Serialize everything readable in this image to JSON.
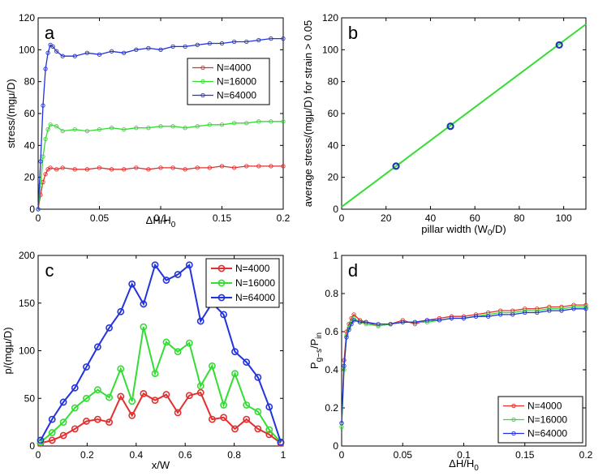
{
  "chart_data": [
    {
      "id": "a",
      "type": "line",
      "panel_label": "a",
      "xlabel": "ΔH/H",
      "xlabel_sub": "0",
      "ylabel": "stress/(mgμ/D)",
      "xlim": [
        0,
        0.2
      ],
      "ylim": [
        0,
        120
      ],
      "xticks": [
        0,
        0.05,
        0.1,
        0.15,
        0.2
      ],
      "xtick_labels": [
        "0",
        "0.05",
        "0.1",
        "0.15",
        "0.2"
      ],
      "yticks": [
        0,
        20,
        40,
        60,
        80,
        100,
        120
      ],
      "ytick_labels": [
        "0",
        "20",
        "40",
        "60",
        "80",
        "100",
        "120"
      ],
      "legend_position": "upper-right",
      "series": [
        {
          "name": "N=4000",
          "color": "#e0302f",
          "x": [
            0,
            0.002,
            0.004,
            0.006,
            0.008,
            0.01,
            0.015,
            0.02,
            0.03,
            0.04,
            0.05,
            0.06,
            0.07,
            0.08,
            0.09,
            0.1,
            0.11,
            0.12,
            0.13,
            0.14,
            0.15,
            0.16,
            0.17,
            0.18,
            0.19,
            0.2
          ],
          "y": [
            0,
            9,
            17,
            22,
            25,
            26,
            25,
            26,
            25,
            25,
            26,
            25,
            25,
            26,
            25,
            26,
            26,
            25,
            26,
            26,
            27,
            26,
            27,
            27,
            27,
            27
          ]
        },
        {
          "name": "N=16000",
          "color": "#33dd33",
          "x": [
            0,
            0.002,
            0.004,
            0.006,
            0.008,
            0.01,
            0.015,
            0.02,
            0.03,
            0.04,
            0.05,
            0.06,
            0.07,
            0.08,
            0.09,
            0.1,
            0.11,
            0.12,
            0.13,
            0.14,
            0.15,
            0.16,
            0.17,
            0.18,
            0.19,
            0.2
          ],
          "y": [
            0,
            15,
            33,
            44,
            50,
            53,
            52,
            49,
            50,
            49,
            50,
            51,
            50,
            51,
            51,
            52,
            52,
            51,
            52,
            53,
            53,
            54,
            54,
            55,
            55,
            55
          ]
        },
        {
          "name": "N=64000",
          "color": "#2233dd",
          "x": [
            0,
            0.002,
            0.004,
            0.006,
            0.008,
            0.01,
            0.012,
            0.015,
            0.02,
            0.03,
            0.04,
            0.05,
            0.06,
            0.07,
            0.08,
            0.09,
            0.1,
            0.11,
            0.12,
            0.13,
            0.14,
            0.15,
            0.16,
            0.17,
            0.18,
            0.19,
            0.2
          ],
          "y": [
            0,
            30,
            65,
            88,
            98,
            103,
            102,
            99,
            96,
            96,
            98,
            97,
            99,
            98,
            100,
            101,
            100,
            102,
            102,
            103,
            104,
            104,
            105,
            105,
            106,
            107,
            107
          ]
        }
      ]
    },
    {
      "id": "b",
      "type": "line",
      "panel_label": "b",
      "xlabel": "pillar width (W",
      "xlabel_sub": "0",
      "xlabel_tail": "/D)",
      "ylabel": "average stress/(mgμ/D) for strain > 0.05",
      "xlim": [
        0,
        110
      ],
      "ylim": [
        0,
        120
      ],
      "xticks": [
        0,
        20,
        40,
        60,
        80,
        100
      ],
      "xtick_labels": [
        "0",
        "20",
        "40",
        "60",
        "80",
        "100"
      ],
      "yticks": [
        0,
        20,
        40,
        60,
        80,
        100,
        120
      ],
      "ytick_labels": [
        "0",
        "20",
        "40",
        "60",
        "80",
        "100",
        "120"
      ],
      "series": [
        {
          "name": "fit",
          "color": "#33dd33",
          "x": [
            0,
            110
          ],
          "y": [
            1.5,
            116
          ]
        },
        {
          "name": "data",
          "color": "#1a3aa8",
          "x": [
            24.5,
            49,
            98
          ],
          "y": [
            27,
            52,
            103
          ]
        }
      ]
    },
    {
      "id": "c",
      "type": "line",
      "panel_label": "c",
      "xlabel": "x/W",
      "ylabel": "p/(mgμ/D)",
      "xlim": [
        0,
        1
      ],
      "ylim": [
        0,
        200
      ],
      "xticks": [
        0,
        0.2,
        0.4,
        0.6,
        0.8,
        1
      ],
      "xtick_labels": [
        "0",
        "0.2",
        "0.4",
        "0.6",
        "0.8",
        "1"
      ],
      "yticks": [
        0,
        50,
        100,
        150,
        200
      ],
      "ytick_labels": [
        "0",
        "50",
        "100",
        "150",
        "200"
      ],
      "legend_position": "upper-right",
      "series": [
        {
          "name": "N=4000",
          "color": "#e0302f",
          "x": [
            0.01,
            0.057,
            0.103,
            0.15,
            0.197,
            0.243,
            0.29,
            0.337,
            0.383,
            0.43,
            0.477,
            0.523,
            0.57,
            0.617,
            0.663,
            0.71,
            0.757,
            0.803,
            0.85,
            0.897,
            0.943,
            0.99
          ],
          "y": [
            3,
            6,
            11,
            18,
            26,
            28,
            25,
            52,
            32,
            55,
            48,
            54,
            35,
            53,
            56,
            28,
            30,
            18,
            28,
            18,
            12,
            3
          ]
        },
        {
          "name": "N=16000",
          "color": "#33dd33",
          "x": [
            0.01,
            0.057,
            0.103,
            0.15,
            0.197,
            0.243,
            0.29,
            0.337,
            0.383,
            0.43,
            0.477,
            0.523,
            0.57,
            0.617,
            0.663,
            0.71,
            0.757,
            0.803,
            0.85,
            0.897,
            0.943,
            0.99
          ],
          "y": [
            4,
            14,
            25,
            40,
            50,
            59,
            51,
            81,
            47,
            125,
            76,
            109,
            99,
            108,
            63,
            84,
            43,
            76,
            43,
            36,
            17,
            4
          ]
        },
        {
          "name": "N=64000",
          "color": "#2233dd",
          "x": [
            0.01,
            0.057,
            0.103,
            0.15,
            0.197,
            0.243,
            0.29,
            0.337,
            0.383,
            0.43,
            0.477,
            0.523,
            0.57,
            0.617,
            0.663,
            0.71,
            0.757,
            0.803,
            0.85,
            0.897,
            0.943,
            0.99
          ],
          "y": [
            6,
            28,
            46,
            61,
            83,
            104,
            124,
            141,
            170,
            149,
            190,
            174,
            180,
            190,
            131,
            150,
            138,
            99,
            88,
            72,
            41,
            4
          ]
        }
      ]
    },
    {
      "id": "d",
      "type": "line",
      "panel_label": "d",
      "xlabel": "ΔH/H",
      "xlabel_sub": "0",
      "ylabel": "P",
      "ylabel_sub1": "g−s",
      "ylabel_mid": "/P",
      "ylabel_sub2": "in",
      "xlim": [
        0,
        0.2
      ],
      "ylim": [
        0,
        1
      ],
      "xticks": [
        0,
        0.05,
        0.1,
        0.15,
        0.2
      ],
      "xtick_labels": [
        "0",
        "0.05",
        "0.1",
        "0.15",
        "0.2"
      ],
      "yticks": [
        0,
        0.2,
        0.4,
        0.6,
        0.8,
        1
      ],
      "ytick_labels": [
        "0",
        "0.2",
        "0.4",
        "0.6",
        "0.8",
        "1"
      ],
      "legend_position": "lower-right",
      "series": [
        {
          "name": "N=4000",
          "color": "#e0302f",
          "x": [
            0,
            0.002,
            0.004,
            0.006,
            0.008,
            0.01,
            0.015,
            0.02,
            0.03,
            0.04,
            0.05,
            0.06,
            0.07,
            0.08,
            0.09,
            0.1,
            0.11,
            0.12,
            0.13,
            0.14,
            0.15,
            0.16,
            0.17,
            0.18,
            0.19,
            0.2
          ],
          "y": [
            0.12,
            0.45,
            0.6,
            0.64,
            0.67,
            0.69,
            0.66,
            0.65,
            0.63,
            0.64,
            0.66,
            0.64,
            0.66,
            0.67,
            0.68,
            0.68,
            0.69,
            0.7,
            0.71,
            0.71,
            0.72,
            0.72,
            0.73,
            0.73,
            0.74,
            0.74
          ]
        },
        {
          "name": "N=16000",
          "color": "#33dd33",
          "x": [
            0,
            0.002,
            0.004,
            0.006,
            0.008,
            0.01,
            0.015,
            0.02,
            0.03,
            0.04,
            0.05,
            0.06,
            0.07,
            0.08,
            0.09,
            0.1,
            0.11,
            0.12,
            0.13,
            0.14,
            0.15,
            0.16,
            0.17,
            0.18,
            0.19,
            0.2
          ],
          "y": [
            0.1,
            0.4,
            0.58,
            0.62,
            0.65,
            0.67,
            0.65,
            0.64,
            0.63,
            0.64,
            0.65,
            0.65,
            0.65,
            0.66,
            0.67,
            0.67,
            0.68,
            0.69,
            0.7,
            0.7,
            0.71,
            0.71,
            0.72,
            0.72,
            0.73,
            0.73
          ]
        },
        {
          "name": "N=64000",
          "color": "#2233dd",
          "x": [
            0,
            0.002,
            0.004,
            0.006,
            0.008,
            0.01,
            0.015,
            0.02,
            0.03,
            0.04,
            0.05,
            0.06,
            0.07,
            0.08,
            0.09,
            0.1,
            0.11,
            0.12,
            0.13,
            0.14,
            0.15,
            0.16,
            0.17,
            0.18,
            0.19,
            0.2
          ],
          "y": [
            0.12,
            0.42,
            0.57,
            0.61,
            0.64,
            0.66,
            0.65,
            0.65,
            0.64,
            0.64,
            0.65,
            0.65,
            0.66,
            0.66,
            0.67,
            0.67,
            0.68,
            0.68,
            0.69,
            0.69,
            0.7,
            0.7,
            0.71,
            0.71,
            0.72,
            0.72
          ]
        }
      ]
    }
  ]
}
